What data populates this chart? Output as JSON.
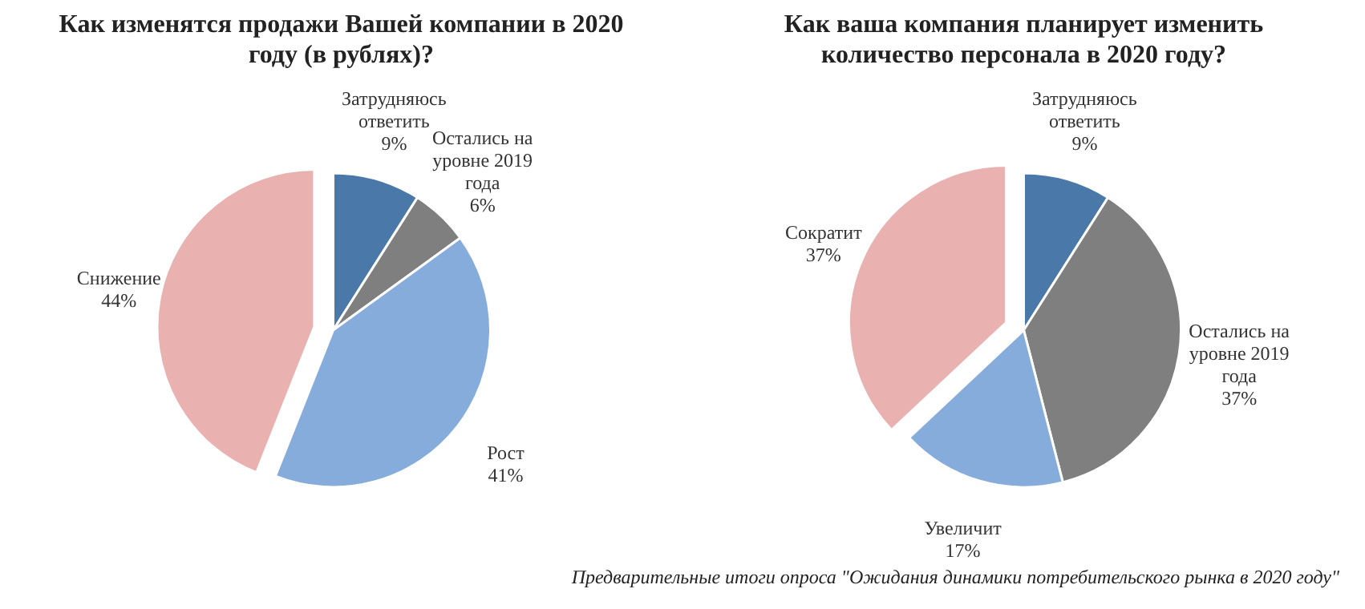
{
  "chart_data": [
    {
      "type": "pie",
      "title": "Как изменятся продажи Вашей компании в 2020 году (в рублях)?",
      "categories": [
        "Затрудняюсь ответить",
        "Остались на уровне 2019 года",
        "Рост",
        "Снижение"
      ],
      "values": [
        9,
        6,
        41,
        44
      ],
      "value_labels": [
        "9%",
        "6%",
        "41%",
        "44%"
      ],
      "colors": [
        "#4a78a8",
        "#7f7f7f",
        "#86acdc",
        "#e9b2b1"
      ]
    },
    {
      "type": "pie",
      "title": "Как ваша компания планирует изменить количество персонала в 2020 году?",
      "categories": [
        "Затрудняюсь ответить",
        "Остались на уровне 2019 года",
        "Увеличит",
        "Сократит"
      ],
      "values": [
        9,
        37,
        17,
        37
      ],
      "value_labels": [
        "9%",
        "37%",
        "17%",
        "37%"
      ],
      "colors": [
        "#4a78a8",
        "#7f7f7f",
        "#86acdc",
        "#e9b2b1"
      ],
      "annotations": [
        "Предварительные итоги опроса \"Ожидания динамики потребительского рынка в 2020 году\""
      ]
    }
  ]
}
